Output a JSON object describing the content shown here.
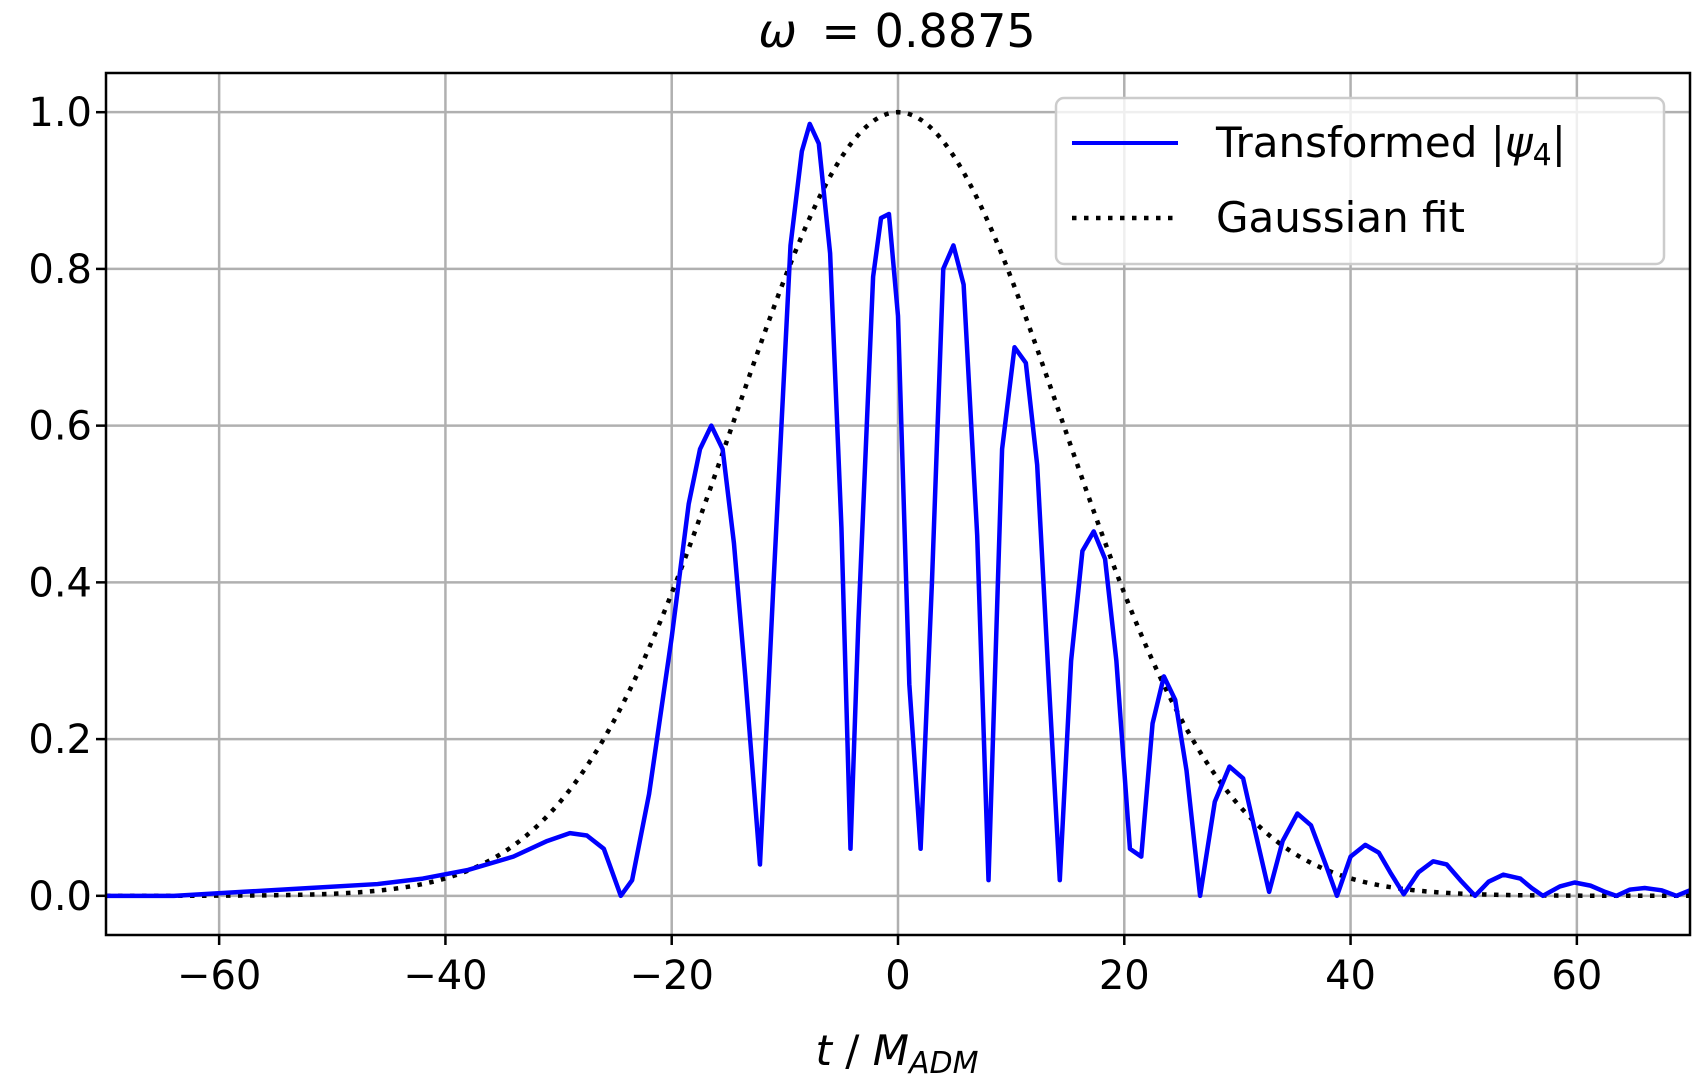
{
  "chart_data": {
    "type": "line",
    "title_var": "ω",
    "title_value": "0.8875",
    "xlabel_var": "t",
    "xlabel_den": "M",
    "xlabel_sub": "ADM",
    "xlim": [
      -70,
      70
    ],
    "ylim": [
      -0.05,
      1.05
    ],
    "xticks": [
      -60,
      -40,
      -20,
      0,
      20,
      40,
      60
    ],
    "xtick_labels": [
      "−60",
      "−40",
      "−20",
      "0",
      "20",
      "40",
      "60"
    ],
    "yticks": [
      0.0,
      0.2,
      0.4,
      0.6,
      0.8,
      1.0
    ],
    "ytick_labels": [
      "0.0",
      "0.2",
      "0.4",
      "0.6",
      "0.8",
      "1.0"
    ],
    "grid": true,
    "legend_position": "top-right",
    "series": [
      {
        "name": "Transformed |ψ4|",
        "legend_main": "Transformed |",
        "legend_var": "ψ",
        "legend_sub": "4",
        "legend_tail": "|",
        "color": "#0000ff",
        "style": "solid",
        "points": [
          [
            -70,
            0.0
          ],
          [
            -64,
            0.0
          ],
          [
            -58,
            0.005
          ],
          [
            -52,
            0.01
          ],
          [
            -46,
            0.015
          ],
          [
            -42,
            0.022
          ],
          [
            -38,
            0.033
          ],
          [
            -34,
            0.05
          ],
          [
            -31,
            0.07
          ],
          [
            -29,
            0.08
          ],
          [
            -27.5,
            0.077
          ],
          [
            -26,
            0.06
          ],
          [
            -24.5,
            0.0
          ],
          [
            -23.5,
            0.02
          ],
          [
            -22,
            0.13
          ],
          [
            -20,
            0.33
          ],
          [
            -18.5,
            0.5
          ],
          [
            -17.5,
            0.57
          ],
          [
            -16.5,
            0.6
          ],
          [
            -15.5,
            0.57
          ],
          [
            -14.5,
            0.45
          ],
          [
            -13.5,
            0.28
          ],
          [
            -12.2,
            0.04
          ],
          [
            -11,
            0.4
          ],
          [
            -9.5,
            0.83
          ],
          [
            -8.5,
            0.95
          ],
          [
            -7.8,
            0.985
          ],
          [
            -7,
            0.96
          ],
          [
            -6,
            0.82
          ],
          [
            -5,
            0.47
          ],
          [
            -4.2,
            0.06
          ],
          [
            -3.5,
            0.35
          ],
          [
            -2.2,
            0.79
          ],
          [
            -1.5,
            0.865
          ],
          [
            -0.8,
            0.87
          ],
          [
            0,
            0.74
          ],
          [
            1,
            0.27
          ],
          [
            2,
            0.06
          ],
          [
            3,
            0.4
          ],
          [
            4,
            0.8
          ],
          [
            4.9,
            0.83
          ],
          [
            5.8,
            0.78
          ],
          [
            7,
            0.46
          ],
          [
            8,
            0.02
          ],
          [
            9.2,
            0.57
          ],
          [
            10.3,
            0.7
          ],
          [
            11.3,
            0.68
          ],
          [
            12.3,
            0.55
          ],
          [
            13.3,
            0.28
          ],
          [
            14.3,
            0.02
          ],
          [
            15.3,
            0.3
          ],
          [
            16.3,
            0.44
          ],
          [
            17.3,
            0.465
          ],
          [
            18.3,
            0.43
          ],
          [
            19.3,
            0.3
          ],
          [
            20.5,
            0.06
          ],
          [
            21.5,
            0.05
          ],
          [
            22.5,
            0.22
          ],
          [
            23.5,
            0.28
          ],
          [
            24.5,
            0.25
          ],
          [
            25.5,
            0.16
          ],
          [
            26.7,
            0.0
          ],
          [
            28,
            0.12
          ],
          [
            29.3,
            0.165
          ],
          [
            30.5,
            0.15
          ],
          [
            31.6,
            0.08
          ],
          [
            32.8,
            0.005
          ],
          [
            34,
            0.07
          ],
          [
            35.3,
            0.105
          ],
          [
            36.5,
            0.09
          ],
          [
            37.8,
            0.04
          ],
          [
            38.8,
            0.0
          ],
          [
            40,
            0.05
          ],
          [
            41.3,
            0.065
          ],
          [
            42.5,
            0.055
          ],
          [
            43.5,
            0.03
          ],
          [
            44.7,
            0.002
          ],
          [
            46,
            0.03
          ],
          [
            47.3,
            0.044
          ],
          [
            48.5,
            0.04
          ],
          [
            49.7,
            0.02
          ],
          [
            51,
            0.0
          ],
          [
            52.2,
            0.018
          ],
          [
            53.5,
            0.027
          ],
          [
            55,
            0.022
          ],
          [
            56,
            0.01
          ],
          [
            57,
            0.0
          ],
          [
            58.5,
            0.012
          ],
          [
            59.8,
            0.017
          ],
          [
            61.2,
            0.013
          ],
          [
            62.5,
            0.005
          ],
          [
            63.5,
            0.0
          ],
          [
            64.7,
            0.008
          ],
          [
            66,
            0.01
          ],
          [
            67.5,
            0.007
          ],
          [
            68.8,
            0.0
          ],
          [
            70,
            0.007
          ]
        ]
      },
      {
        "name": "Gaussian fit",
        "color": "#000000",
        "style": "dotted",
        "gaussian": {
          "amplitude": 1.0,
          "mean": 0.0,
          "sigma": 14.5
        }
      }
    ]
  }
}
